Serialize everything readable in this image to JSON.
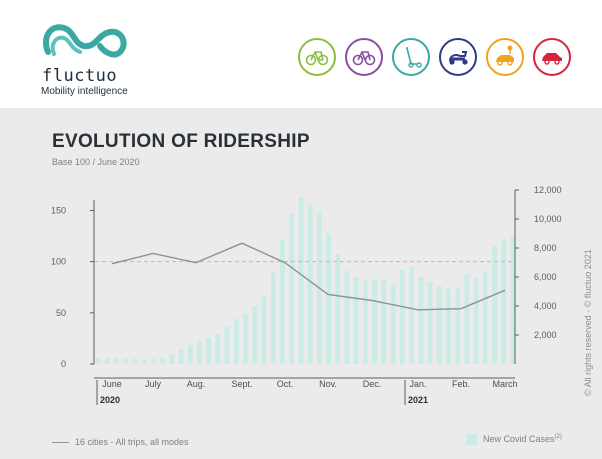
{
  "brand": {
    "name": "fluctuo",
    "tagline": "Mobility intelligence"
  },
  "modes": [
    {
      "icon": "bike-share-icon",
      "color": "#8cbf3f"
    },
    {
      "icon": "bicycle-icon",
      "color": "#8a4fa0"
    },
    {
      "icon": "kick-scooter-icon",
      "color": "#3aa9a3"
    },
    {
      "icon": "moped-icon",
      "color": "#2c3a8c"
    },
    {
      "icon": "car-sharing-icon",
      "color": "#f0a31f"
    },
    {
      "icon": "car-icon",
      "color": "#d6243c"
    }
  ],
  "copyright": "© All rights reserved - © fluctuo 2021",
  "chart_data": {
    "type": "bar+line",
    "title": "EVOLUTION OF RIDERSHIP",
    "subtitle": "Base 100 / June 2020",
    "x_labels": [
      "June",
      "July",
      "Aug.",
      "Sept.",
      "Oct.",
      "Nov.",
      "Dec.",
      "Jan.",
      "Feb.",
      "March"
    ],
    "year_labels": [
      {
        "label": "2020",
        "at": "June"
      },
      {
        "label": "2021",
        "at": "Jan."
      }
    ],
    "left_axis": {
      "ticks": [
        0,
        50,
        100,
        150
      ],
      "range": [
        0,
        170
      ]
    },
    "right_axis": {
      "ticks": [
        "2,000",
        "4,000",
        "6,000",
        "8,000",
        "10,000",
        "12,000"
      ],
      "range": [
        0,
        12000
      ]
    },
    "reference_line": 100,
    "series": [
      {
        "name": "16 cities - All trips, all modes",
        "type": "line",
        "axis": "left",
        "color": "#8e9195",
        "points": [
          [
            0,
            98
          ],
          [
            1,
            108
          ],
          [
            2,
            99
          ],
          [
            3,
            118
          ],
          [
            4,
            99
          ],
          [
            5,
            68
          ],
          [
            6,
            62
          ],
          [
            7,
            53
          ],
          [
            8,
            54
          ],
          [
            9,
            72
          ]
        ]
      },
      {
        "name": "New Covid Cases",
        "name_note": "(2)",
        "type": "bar",
        "axis": "right",
        "color": "#c9ece6",
        "values": [
          400,
          400,
          400,
          350,
          350,
          300,
          350,
          400,
          700,
          1000,
          1300,
          1600,
          1800,
          2100,
          2600,
          3100,
          3500,
          4000,
          4600,
          6300,
          8600,
          10400,
          11500,
          11000,
          10400,
          9000,
          7600,
          6400,
          6000,
          5800,
          5800,
          5800,
          5500,
          6500,
          6700,
          6000,
          5700,
          5400,
          5200,
          5300,
          6200,
          5900,
          6400,
          8100,
          8600,
          8800
        ]
      }
    ]
  }
}
